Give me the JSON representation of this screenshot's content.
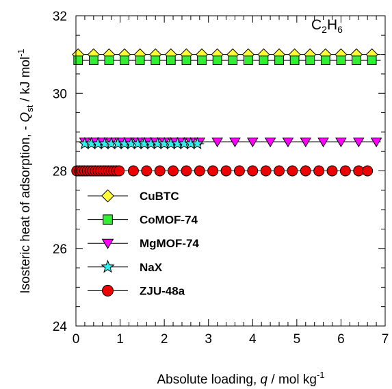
{
  "chart_data": {
    "type": "line",
    "title": "",
    "annotation": {
      "main": "C",
      "sub1": "2",
      "mid": "H",
      "sub2": "6"
    },
    "xlabel": {
      "prefix": "Absolute loading, ",
      "var": "q",
      "unit": " / mol kg",
      "sup": "-1"
    },
    "ylabel": {
      "prefix": "Isosteric heat of adsorption, - ",
      "var": "Q",
      "sub": "st",
      "unit": " / kJ mol",
      "sup": "-1"
    },
    "xlim": [
      0,
      7
    ],
    "ylim": [
      24,
      32
    ],
    "x_ticks": [
      0,
      1,
      2,
      3,
      4,
      5,
      6,
      7
    ],
    "y_ticks": [
      24,
      26,
      28,
      30,
      32
    ],
    "legend_position": "lower-left",
    "series": [
      {
        "name": "CuBTC",
        "marker": "diamond",
        "color": "#ffff33",
        "line_x": [
          0,
          6.9
        ],
        "y": 31,
        "x": [
          0.05,
          0.4,
          0.75,
          1.1,
          1.45,
          1.8,
          2.15,
          2.5,
          2.85,
          3.2,
          3.55,
          3.9,
          4.25,
          4.6,
          4.95,
          5.3,
          5.65,
          6.0,
          6.35,
          6.7
        ]
      },
      {
        "name": "CoMOF-74",
        "marker": "square",
        "color": "#33ee33",
        "line_x": [
          0,
          6.9
        ],
        "y": 30.85,
        "x": [
          0.05,
          0.4,
          0.75,
          1.1,
          1.45,
          1.8,
          2.15,
          2.5,
          2.85,
          3.2,
          3.55,
          3.9,
          4.25,
          4.6,
          4.95,
          5.3,
          5.65,
          6.0,
          6.35,
          6.7
        ]
      },
      {
        "name": "MgMOF-74",
        "marker": "triangle-down",
        "color": "#ff00ff",
        "line_x": [
          0,
          6.9
        ],
        "y": 28.75,
        "x": [
          0.2,
          0.4,
          0.6,
          0.8,
          1.0,
          1.2,
          1.4,
          1.6,
          1.8,
          2.0,
          2.2,
          2.4,
          2.6,
          2.8,
          3.2,
          3.6,
          4.0,
          4.4,
          4.8,
          5.2,
          5.6,
          6.0,
          6.4,
          6.8
        ]
      },
      {
        "name": "NaX",
        "marker": "star",
        "color": "#33eeee",
        "line_x": [
          0.15,
          2.9
        ],
        "y": 28.7,
        "x": [
          0.2,
          0.35,
          0.5,
          0.65,
          0.8,
          0.95,
          1.1,
          1.25,
          1.4,
          1.55,
          1.7,
          1.85,
          2.0,
          2.15,
          2.3,
          2.45,
          2.6,
          2.75
        ]
      },
      {
        "name": "ZJU-48a",
        "marker": "circle",
        "color": "#ee0000",
        "line_x": [
          0,
          6.65
        ],
        "y": 28,
        "x": [
          0.02,
          0.08,
          0.14,
          0.2,
          0.26,
          0.32,
          0.38,
          0.44,
          0.5,
          0.56,
          0.62,
          0.68,
          0.74,
          0.8,
          0.86,
          0.92,
          0.98,
          1.3,
          1.6,
          1.9,
          2.2,
          2.5,
          2.8,
          3.1,
          3.4,
          3.7,
          4.0,
          4.3,
          4.6,
          4.9,
          5.2,
          5.5,
          5.8,
          6.1,
          6.4,
          6.6
        ]
      }
    ]
  }
}
